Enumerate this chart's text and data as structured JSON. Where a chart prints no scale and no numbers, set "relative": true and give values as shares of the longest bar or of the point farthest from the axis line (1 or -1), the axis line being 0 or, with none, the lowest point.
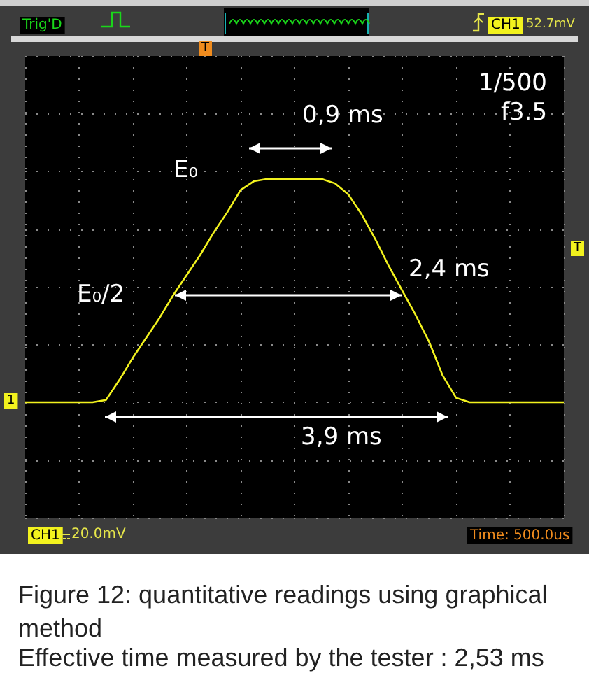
{
  "chart_data": {
    "type": "line",
    "relative": true,
    "grid": true,
    "marker": "none",
    "line_style": "solid",
    "title": "Figure 12: quantitative readings using graphical method",
    "subtitle": "Effective time measured by the tester : 2,53 ms",
    "categories": [
      null,
      null,
      null,
      null,
      null,
      null,
      null,
      null,
      null,
      null,
      null,
      null,
      null,
      null,
      null,
      null,
      null,
      null,
      null,
      null,
      null,
      null,
      null,
      null,
      null,
      null,
      null,
      null,
      null,
      null,
      null,
      null,
      null,
      null,
      null,
      null,
      null,
      null,
      null,
      null,
      null
    ],
    "series": [
      {
        "color": "#f2f21e",
        "values": [
          0,
          0,
          0,
          0,
          0,
          0,
          0.01,
          0.1,
          0.2,
          0.29,
          0.38,
          0.48,
          0.57,
          0.66,
          0.76,
          0.85,
          0.95,
          0.99,
          1,
          1,
          1,
          1,
          1,
          0.98,
          0.93,
          0.84,
          0.73,
          0.61,
          0.5,
          0.39,
          0.27,
          0.12,
          0.02,
          0,
          0,
          0,
          0,
          0,
          0,
          0,
          0
        ]
      }
    ],
    "annotations": [
      "Trig'D",
      "CH1",
      "52.7mV",
      "1/500",
      "f3.5",
      "0,9 ms",
      "E₀",
      "E₀/2",
      "2,4 ms",
      "3,9 ms",
      "T",
      "T",
      "1",
      "CH1",
      "20.0mV",
      "Time: 500.0us"
    ]
  }
}
